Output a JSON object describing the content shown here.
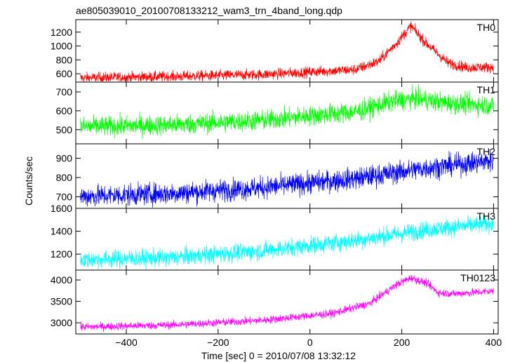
{
  "title": "ae805039010_20100708133212_wam3_trn_4band_long.qdp",
  "chart_data": {
    "type": "line",
    "title": "ae805039010_20100708133212_wam3_trn_4band_long.qdp",
    "xlabel": "Time [sec] 0 = 2010/07/08 13:32:12",
    "ylabel": "Counts/sec",
    "xlim": [
      -510,
      410
    ],
    "x_ticks": [
      -400,
      -200,
      0,
      200,
      400
    ],
    "x_tick_labels": [
      "−400",
      "−200",
      "0",
      "200",
      "400"
    ],
    "grid": false,
    "panels": [
      {
        "name": "TH0",
        "color": "#ff0000",
        "ylim": [
          480,
          1380
        ],
        "y_ticks": [
          600,
          800,
          1000,
          1200
        ],
        "y_tick_labels": [
          "600",
          "800",
          "1000",
          "1200"
        ],
        "trend": [
          [
            -500,
            540
          ],
          [
            -300,
            560
          ],
          [
            -100,
            590
          ],
          [
            100,
            660
          ],
          [
            150,
            780
          ],
          [
            190,
            1050
          ],
          [
            220,
            1290
          ],
          [
            250,
            1060
          ],
          [
            300,
            760
          ],
          [
            340,
            690
          ],
          [
            400,
            695
          ]
        ],
        "noise": 55
      },
      {
        "name": "TH1",
        "color": "#00ff00",
        "ylim": [
          425,
          752
        ],
        "y_ticks": [
          500,
          600,
          700
        ],
        "y_tick_labels": [
          "500",
          "600",
          "700"
        ],
        "trend": [
          [
            -500,
            515
          ],
          [
            -300,
            525
          ],
          [
            -100,
            550
          ],
          [
            100,
            595
          ],
          [
            180,
            650
          ],
          [
            230,
            665
          ],
          [
            300,
            640
          ],
          [
            400,
            628
          ]
        ],
        "noise": 38
      },
      {
        "name": "TH2",
        "color": "#0000ff",
        "ylim": [
          640,
          975
        ],
        "y_ticks": [
          700,
          800,
          900
        ],
        "y_tick_labels": [
          "700",
          "800",
          "900"
        ],
        "trend": [
          [
            -500,
            702
          ],
          [
            -300,
            718
          ],
          [
            -100,
            748
          ],
          [
            100,
            795
          ],
          [
            250,
            848
          ],
          [
            400,
            888
          ]
        ],
        "noise": 40
      },
      {
        "name": "TH3",
        "color": "#00ffff",
        "ylim": [
          1060,
          1600
        ],
        "y_ticks": [
          1200,
          1400,
          1600
        ],
        "y_tick_labels": [
          "1200",
          "1400",
          "1600"
        ],
        "trend": [
          [
            -500,
            1150
          ],
          [
            -300,
            1170
          ],
          [
            -100,
            1230
          ],
          [
            100,
            1320
          ],
          [
            250,
            1410
          ],
          [
            400,
            1470
          ]
        ],
        "noise": 55
      },
      {
        "name": "TH0123",
        "color": "#ff00ff",
        "ylim": [
          2740,
          4230
        ],
        "y_ticks": [
          3000,
          3500,
          4000
        ],
        "y_tick_labels": [
          "3000",
          "3500",
          "4000"
        ],
        "trend": [
          [
            -500,
            2900
          ],
          [
            -300,
            2950
          ],
          [
            -100,
            3060
          ],
          [
            50,
            3220
          ],
          [
            130,
            3450
          ],
          [
            190,
            3900
          ],
          [
            220,
            4050
          ],
          [
            255,
            3920
          ],
          [
            280,
            3700
          ],
          [
            320,
            3680
          ],
          [
            400,
            3740
          ]
        ],
        "noise": 65
      }
    ]
  }
}
